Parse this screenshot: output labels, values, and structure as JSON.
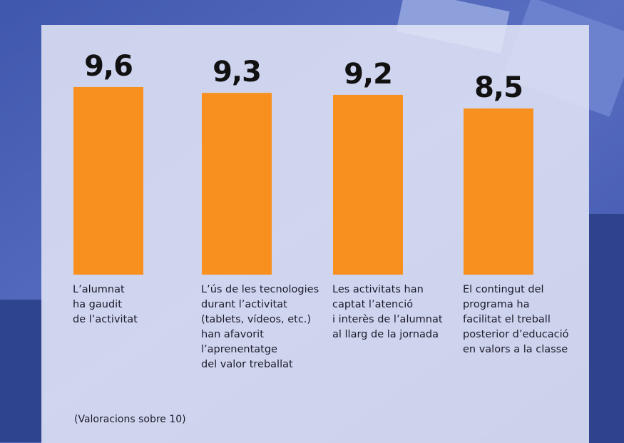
{
  "chart_data": {
    "type": "bar",
    "categories": [
      "L’alumnat\nha gaudit\nde l’activitat",
      "L’ús de les tecnologies\ndurant l’activitat\n(tablets, vídeos, etc.)\nhan afavorit\nl’aprenentatge\ndel valor treballat",
      "Les activitats han\ncaptat l’atenció\ni interès de l’alumnat\nal llarg de la jornada",
      "El contingut del\nprograma ha\nfacilitat el treball\nposterior d’educació\nen valors a la classe"
    ],
    "values": [
      9.6,
      9.3,
      9.2,
      8.5
    ],
    "value_labels": [
      "9,6",
      "9,3",
      "9,2",
      "8,5"
    ],
    "color": "#f7901e",
    "ylim": [
      0,
      10
    ],
    "note": "(Valoracions sobre 10)"
  }
}
